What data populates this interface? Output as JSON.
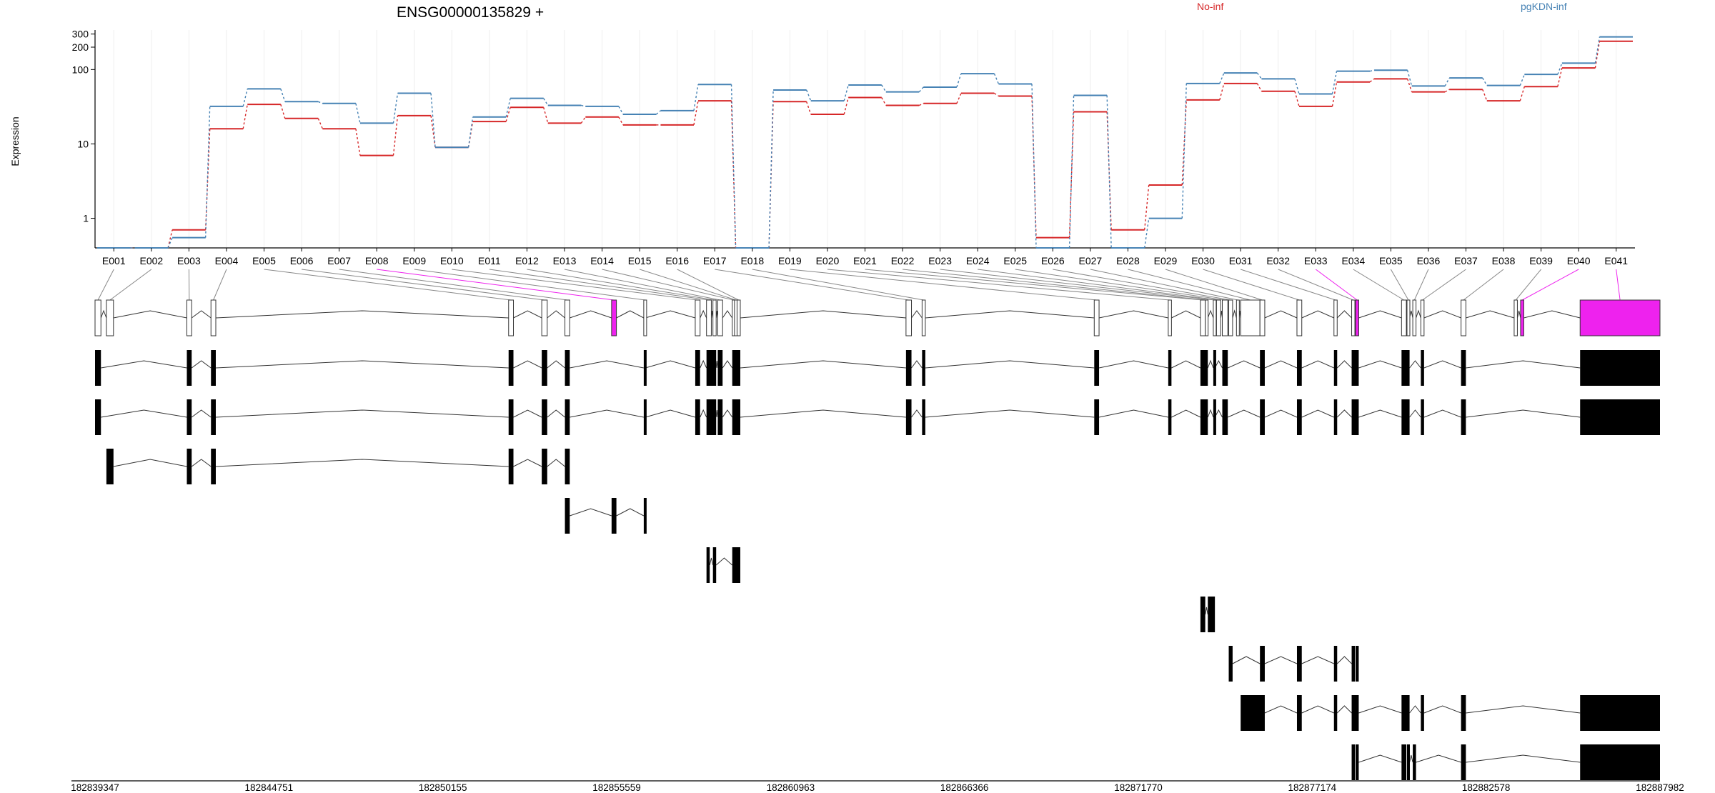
{
  "chart_data": {
    "type": "line",
    "title": "ENSG00000135829 +",
    "ylabel": "Expression",
    "y_scale": "log",
    "y_ticks": [
      "1",
      "10",
      "100",
      "200",
      "300"
    ],
    "grid": "vertical, light gray, one per exon",
    "legend_placement": "top-right",
    "categories": [
      "E001",
      "E002",
      "E003",
      "E004",
      "E005",
      "E006",
      "E007",
      "E008",
      "E009",
      "E010",
      "E011",
      "E012",
      "E013",
      "E014",
      "E015",
      "E016",
      "E017",
      "E018",
      "E019",
      "E020",
      "E021",
      "E022",
      "E023",
      "E024",
      "E025",
      "E026",
      "E027",
      "E028",
      "E029",
      "E030",
      "E031",
      "E032",
      "E033",
      "E034",
      "E035",
      "E036",
      "E037",
      "E038",
      "E039",
      "E040",
      "E041"
    ],
    "series": [
      {
        "name": "No-inf",
        "color": "#d62728",
        "values": [
          0.4,
          0.4,
          0.7,
          16,
          34,
          22,
          16,
          7,
          24,
          9,
          20,
          31,
          19,
          23,
          18,
          18,
          38,
          0.4,
          37,
          25,
          42,
          33,
          35,
          48,
          44,
          0.55,
          27,
          0.7,
          2.8,
          39,
          65,
          51,
          32,
          68,
          75,
          50,
          54,
          38,
          59,
          105,
          240
        ]
      },
      {
        "name": "pgKDN-inf",
        "color": "#4682b4",
        "values": [
          0.4,
          0.4,
          0.55,
          32,
          55,
          37,
          35,
          19,
          48,
          9,
          23,
          41,
          33,
          32,
          25,
          28,
          63,
          0.4,
          53,
          38,
          62,
          50,
          58,
          88,
          64,
          0.4,
          45,
          0.4,
          1,
          65,
          90,
          75,
          47,
          95,
          98,
          60,
          77,
          61,
          86,
          122,
          275
        ]
      }
    ],
    "coordinate_ticks": [
      "182839347",
      "182844751",
      "182850155",
      "182855559",
      "182860963",
      "182866366",
      "182871770",
      "182877174",
      "182882578",
      "182887982"
    ],
    "x_range": [
      182839347,
      182887982
    ],
    "highlight_color": "#ee22ee",
    "highlighted_exons": [
      "E008",
      "E033",
      "E040",
      "E041"
    ],
    "exon_genomic_spans": [
      [
        182839347,
        182839530
      ],
      [
        182839700,
        182839920
      ],
      [
        182842200,
        182842350
      ],
      [
        182842950,
        182843100
      ],
      [
        182852200,
        182852350
      ],
      [
        182853230,
        182853400
      ],
      [
        182853950,
        182854100
      ],
      [
        182855400,
        182855550
      ],
      [
        182856400,
        182856450
      ],
      [
        182858000,
        182858150
      ],
      [
        182858350,
        182858500
      ],
      [
        182858550,
        182858650
      ],
      [
        182858700,
        182858850
      ],
      [
        182859150,
        182859220
      ],
      [
        182859220,
        182859300
      ],
      [
        182859300,
        182859400
      ],
      [
        182864550,
        182864720
      ],
      [
        182865050,
        182865150
      ],
      [
        182870400,
        182870550
      ],
      [
        182872700,
        182872800
      ],
      [
        182873700,
        182873850
      ],
      [
        182873850,
        182873930
      ],
      [
        182874100,
        182874150
      ],
      [
        182874200,
        182874330
      ],
      [
        182874380,
        182874550
      ],
      [
        182874580,
        182874700
      ],
      [
        182874820,
        182874900
      ],
      [
        182874950,
        182875550
      ],
      [
        182875550,
        182875700
      ],
      [
        182876700,
        182876850
      ],
      [
        182877850,
        182877950
      ],
      [
        182878400,
        182878500
      ],
      [
        182878520,
        182878620
      ],
      [
        182879950,
        182880100
      ],
      [
        182880120,
        182880200
      ],
      [
        182880300,
        182880400
      ],
      [
        182880550,
        182880650
      ],
      [
        182881800,
        182881950
      ],
      [
        182883450,
        182883550
      ],
      [
        182883650,
        182883750
      ],
      [
        182885500,
        182887982
      ]
    ],
    "exon_column_of": [
      0,
      1,
      2,
      3,
      4,
      5,
      6,
      7,
      8,
      9,
      10,
      11,
      12,
      13,
      14,
      15,
      16,
      17,
      18,
      19,
      20,
      21,
      22,
      23,
      24,
      25,
      26,
      27,
      28,
      29,
      30,
      31,
      32,
      33,
      34,
      35,
      36,
      37,
      38,
      39,
      40
    ],
    "transcripts": [
      [
        [
          182839347,
          182839530
        ],
        [
          182842200,
          182842350
        ],
        [
          182842950,
          182843100
        ],
        [
          182852200,
          182852350
        ],
        [
          182853230,
          182853400
        ],
        [
          182853950,
          182854100
        ],
        [
          182856400,
          182856450
        ],
        [
          182858000,
          182858150
        ],
        [
          182858350,
          182858650
        ],
        [
          182858700,
          182858850
        ],
        [
          182859150,
          182859400
        ],
        [
          182864550,
          182864720
        ],
        [
          182865050,
          182865150
        ],
        [
          182870400,
          182870550
        ],
        [
          182872700,
          182872800
        ],
        [
          182873700,
          182873930
        ],
        [
          182874100,
          182874150
        ],
        [
          182874380,
          182874550
        ],
        [
          182875550,
          182875700
        ],
        [
          182876700,
          182876850
        ],
        [
          182877850,
          182877950
        ],
        [
          182878400,
          182878620
        ],
        [
          182879950,
          182880200
        ],
        [
          182880550,
          182880650
        ],
        [
          182881800,
          182881950
        ],
        [
          182885500,
          182887982
        ]
      ],
      [
        [
          182839347,
          182839530
        ],
        [
          182842200,
          182842350
        ],
        [
          182842950,
          182843100
        ],
        [
          182852200,
          182852350
        ],
        [
          182853230,
          182853400
        ],
        [
          182853950,
          182854100
        ],
        [
          182856400,
          182856450
        ],
        [
          182858000,
          182858150
        ],
        [
          182858350,
          182858650
        ],
        [
          182858700,
          182858850
        ],
        [
          182859150,
          182859400
        ],
        [
          182864550,
          182864720
        ],
        [
          182865050,
          182865150
        ],
        [
          182870400,
          182870550
        ],
        [
          182872700,
          182872800
        ],
        [
          182873700,
          182873930
        ],
        [
          182874100,
          182874150
        ],
        [
          182874380,
          182874550
        ],
        [
          182875550,
          182875700
        ],
        [
          182876700,
          182876850
        ],
        [
          182877850,
          182877950
        ],
        [
          182878400,
          182878620
        ],
        [
          182879950,
          182880200
        ],
        [
          182880550,
          182880650
        ],
        [
          182881800,
          182881950
        ],
        [
          182885500,
          182887982
        ]
      ],
      [
        [
          182839700,
          182839920
        ],
        [
          182842200,
          182842350
        ],
        [
          182842950,
          182843100
        ],
        [
          182852200,
          182852350
        ],
        [
          182853230,
          182853400
        ],
        [
          182853950,
          182854100
        ]
      ],
      [
        [
          182853950,
          182854100
        ],
        [
          182855400,
          182855550
        ],
        [
          182856400,
          182856450
        ]
      ],
      [
        [
          182858350,
          182858450
        ],
        [
          182858550,
          182858650
        ],
        [
          182859150,
          182859400
        ]
      ],
      [
        [
          182873700,
          182873850
        ],
        [
          182873930,
          182874150
        ]
      ],
      [
        [
          182874580,
          182874700
        ],
        [
          182875550,
          182875700
        ],
        [
          182876700,
          182876850
        ],
        [
          182877850,
          182877950
        ],
        [
          182878400,
          182878500
        ],
        [
          182878520,
          182878620
        ]
      ],
      [
        [
          182874950,
          182875700
        ],
        [
          182876700,
          182876850
        ],
        [
          182877850,
          182877950
        ],
        [
          182878400,
          182878620
        ],
        [
          182879950,
          182880200
        ],
        [
          182880550,
          182880650
        ],
        [
          182881800,
          182881950
        ],
        [
          182885500,
          182887982
        ]
      ],
      [
        [
          182878400,
          182878500
        ],
        [
          182878520,
          182878620
        ],
        [
          182879950,
          182880100
        ],
        [
          182880120,
          182880200
        ],
        [
          182880300,
          182880400
        ],
        [
          182881800,
          182881950
        ],
        [
          182885500,
          182887982
        ]
      ]
    ]
  }
}
